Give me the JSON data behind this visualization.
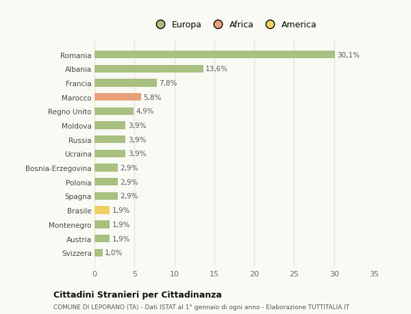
{
  "countries": [
    "Romania",
    "Albania",
    "Francia",
    "Marocco",
    "Regno Unito",
    "Moldova",
    "Russia",
    "Ucraina",
    "Bosnia-Erzegovina",
    "Polonia",
    "Spagna",
    "Brasile",
    "Montenegro",
    "Austria",
    "Svizzera"
  ],
  "values": [
    30.1,
    13.6,
    7.8,
    5.8,
    4.9,
    3.9,
    3.9,
    3.9,
    2.9,
    2.9,
    2.9,
    1.9,
    1.9,
    1.9,
    1.0
  ],
  "labels": [
    "30,1%",
    "13,6%",
    "7,8%",
    "5,8%",
    "4,9%",
    "3,9%",
    "3,9%",
    "3,9%",
    "2,9%",
    "2,9%",
    "2,9%",
    "1,9%",
    "1,9%",
    "1,9%",
    "1,0%"
  ],
  "continents": [
    "Europa",
    "Europa",
    "Europa",
    "Africa",
    "Europa",
    "Europa",
    "Europa",
    "Europa",
    "Europa",
    "Europa",
    "Europa",
    "America",
    "Europa",
    "Europa",
    "Europa"
  ],
  "colors": {
    "Europa": "#a8c080",
    "Africa": "#e8a07a",
    "America": "#f0d060"
  },
  "title1": "Cittadini Stranieri per Cittadinanza",
  "title2": "COMUNE DI LEPORANO (TA) - Dati ISTAT al 1° gennaio di ogni anno - Elaborazione TUTTITALIA.IT",
  "xlim": [
    0,
    35
  ],
  "xticks": [
    0,
    5,
    10,
    15,
    20,
    25,
    30,
    35
  ],
  "background_color": "#fafaf5",
  "grid_color": "#e0e0d0",
  "bar_height": 0.55
}
